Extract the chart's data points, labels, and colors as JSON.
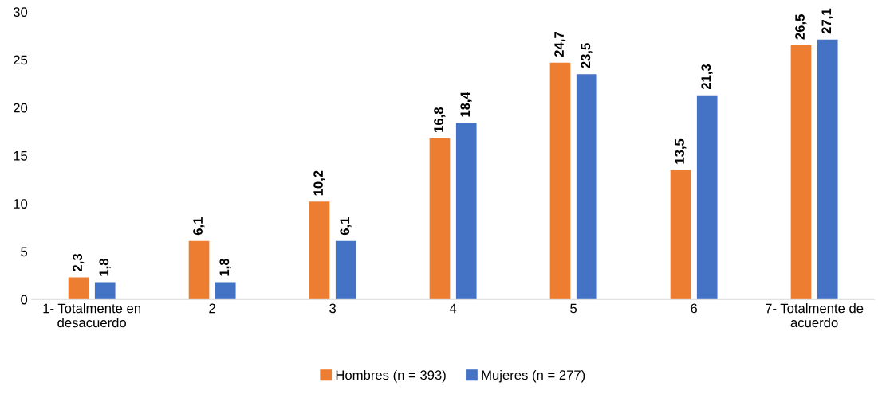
{
  "chart_data": {
    "type": "bar",
    "categories": [
      "1- Totalmente en\ndesacuerdo",
      "2",
      "3",
      "4",
      "5",
      "6",
      "7- Totalmente de\nacuerdo"
    ],
    "series": [
      {
        "name": "Hombres (n = 393)",
        "color": "#ed7d31",
        "values": [
          2.3,
          6.1,
          10.2,
          16.8,
          24.7,
          13.5,
          26.5
        ],
        "value_labels": [
          "2,3",
          "6,1",
          "10,2",
          "16,8",
          "24,7",
          "13,5",
          "26,5"
        ]
      },
      {
        "name": "Mujeres (n = 277)",
        "color": "#4472c4",
        "values": [
          1.8,
          1.8,
          6.1,
          18.4,
          23.5,
          21.3,
          27.1
        ],
        "value_labels": [
          "1,8",
          "1,8",
          "6,1",
          "18,4",
          "23,5",
          "21,3",
          "27,1"
        ]
      }
    ],
    "ylim": [
      0,
      30
    ],
    "yticks": [
      0,
      5,
      10,
      15,
      20,
      25,
      30
    ],
    "grid": false,
    "legend": "bottom"
  }
}
